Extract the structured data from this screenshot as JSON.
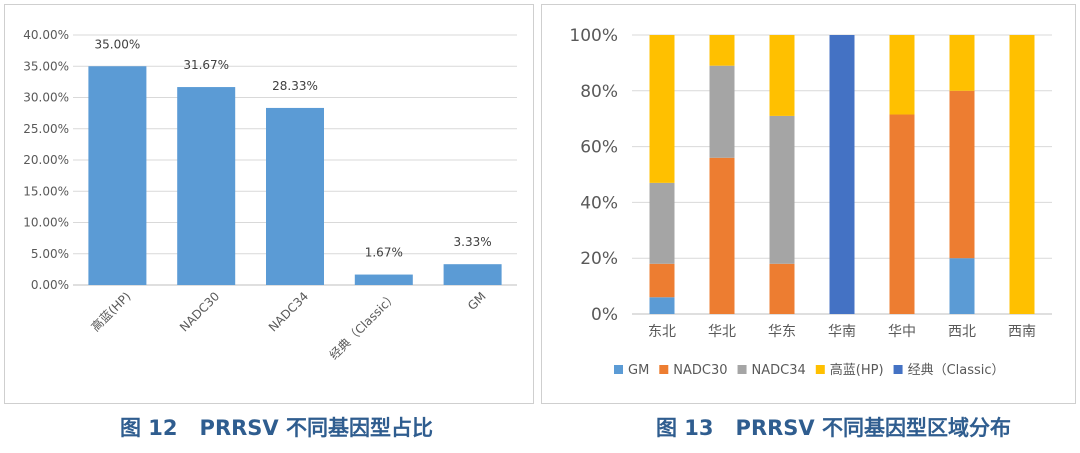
{
  "chart_data": [
    {
      "type": "bar",
      "categories": [
        "高蓝(HP)",
        "NADC30",
        "NADC34",
        "经典（Classic）",
        "GM"
      ],
      "values": [
        35.0,
        31.67,
        28.33,
        1.67,
        3.33
      ],
      "data_labels": [
        "35.00%",
        "31.67%",
        "28.33%",
        "1.67%",
        "3.33%"
      ],
      "yticks": [
        "0.00%",
        "5.00%",
        "10.00%",
        "15.00%",
        "20.00%",
        "25.00%",
        "30.00%",
        "35.00%",
        "40.00%"
      ],
      "ylim": [
        0,
        40
      ],
      "grid": true,
      "bar_color": "#5b9bd5",
      "caption": {
        "number": "图 12",
        "title": "PRRSV 不同基因型占比"
      }
    },
    {
      "type": "bar",
      "stacked": true,
      "normalized": true,
      "categories": [
        "东北",
        "华北",
        "华东",
        "华南",
        "华中",
        "西北",
        "西南"
      ],
      "series": [
        {
          "name": "GM",
          "color": "#5b9bd5",
          "values": [
            6,
            0,
            0,
            0,
            0,
            20,
            0
          ]
        },
        {
          "name": "NADC30",
          "color": "#ed7d31",
          "values": [
            12,
            56,
            18,
            0,
            71.5,
            60,
            0
          ]
        },
        {
          "name": "NADC34",
          "color": "#a5a5a5",
          "values": [
            29,
            33,
            53,
            0,
            0,
            0,
            0
          ]
        },
        {
          "name": "高蓝(HP)",
          "color": "#ffc000",
          "values": [
            53,
            11,
            29,
            0,
            28.5,
            20,
            100
          ]
        },
        {
          "name": "经典（Classic）",
          "color": "#4472c4",
          "values": [
            0,
            0,
            0,
            100,
            0,
            0,
            0
          ]
        }
      ],
      "yticks": [
        "0%",
        "20%",
        "40%",
        "60%",
        "80%",
        "100%"
      ],
      "ylim": [
        0,
        100
      ],
      "grid": true,
      "legend": "bottom",
      "caption": {
        "number": "图 13",
        "title": "PRRSV 不同基因型区域分布"
      }
    }
  ]
}
